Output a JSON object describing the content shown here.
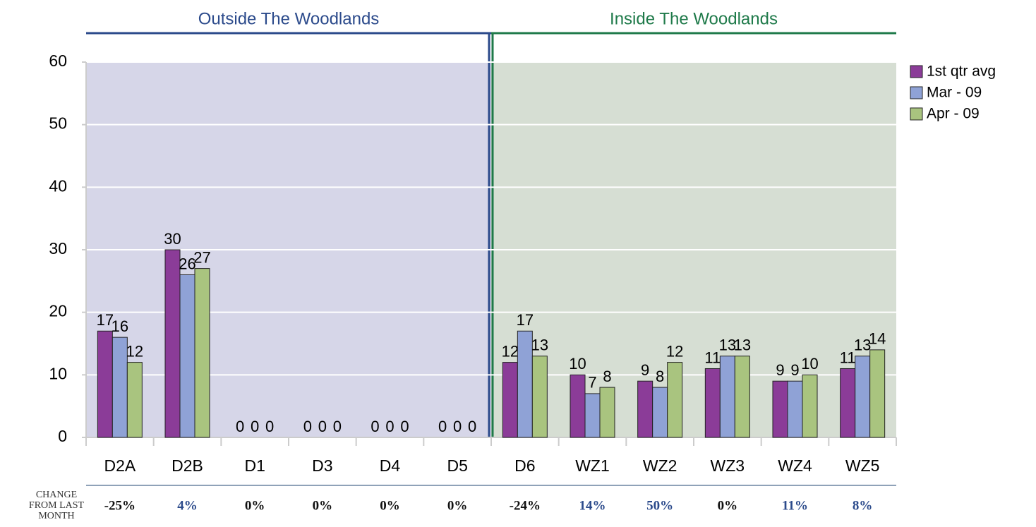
{
  "chart_data": {
    "type": "bar",
    "categories": [
      "D2A",
      "D2B",
      "D1",
      "D3",
      "D4",
      "D5",
      "D6",
      "WZ1",
      "WZ2",
      "WZ3",
      "WZ4",
      "WZ5"
    ],
    "series": [
      {
        "name": "1st qtr avg",
        "color": "#8b3c98",
        "values": [
          17,
          30,
          0,
          0,
          0,
          0,
          12,
          10,
          9,
          11,
          9,
          11
        ]
      },
      {
        "name": "Mar - 09",
        "color": "#8fa2d6",
        "values": [
          16,
          26,
          0,
          0,
          0,
          0,
          17,
          7,
          8,
          13,
          9,
          13
        ]
      },
      {
        "name": "Apr - 09",
        "color": "#a9c47f",
        "values": [
          12,
          27,
          0,
          0,
          0,
          0,
          13,
          8,
          12,
          13,
          10,
          14
        ]
      }
    ],
    "ylim": [
      0,
      60
    ],
    "yticks": [
      0,
      10,
      20,
      30,
      40,
      50,
      60
    ],
    "grid": true,
    "legend": "right",
    "regions": [
      {
        "label": "Outside The Woodlands",
        "span": [
          0,
          5
        ],
        "color": "#2b4a8b",
        "fill": "#d6d6e8"
      },
      {
        "label": "Inside The Woodlands",
        "span": [
          6,
          11
        ],
        "color": "#1f7a4a",
        "fill": "#d6ded3"
      }
    ],
    "change": {
      "title": [
        "CHANGE",
        "FROM LAST",
        "MONTH"
      ],
      "labels": [
        "-25%",
        "4%",
        "0%",
        "0%",
        "0%",
        "0%",
        "-24%",
        "14%",
        "50%",
        "0%",
        "11%",
        "8%"
      ],
      "colors": [
        "#111",
        "#2b4a8b",
        "#111",
        "#111",
        "#111",
        "#111",
        "#111",
        "#2b4a8b",
        "#2b4a8b",
        "#111",
        "#2b4a8b",
        "#2b4a8b"
      ]
    }
  }
}
